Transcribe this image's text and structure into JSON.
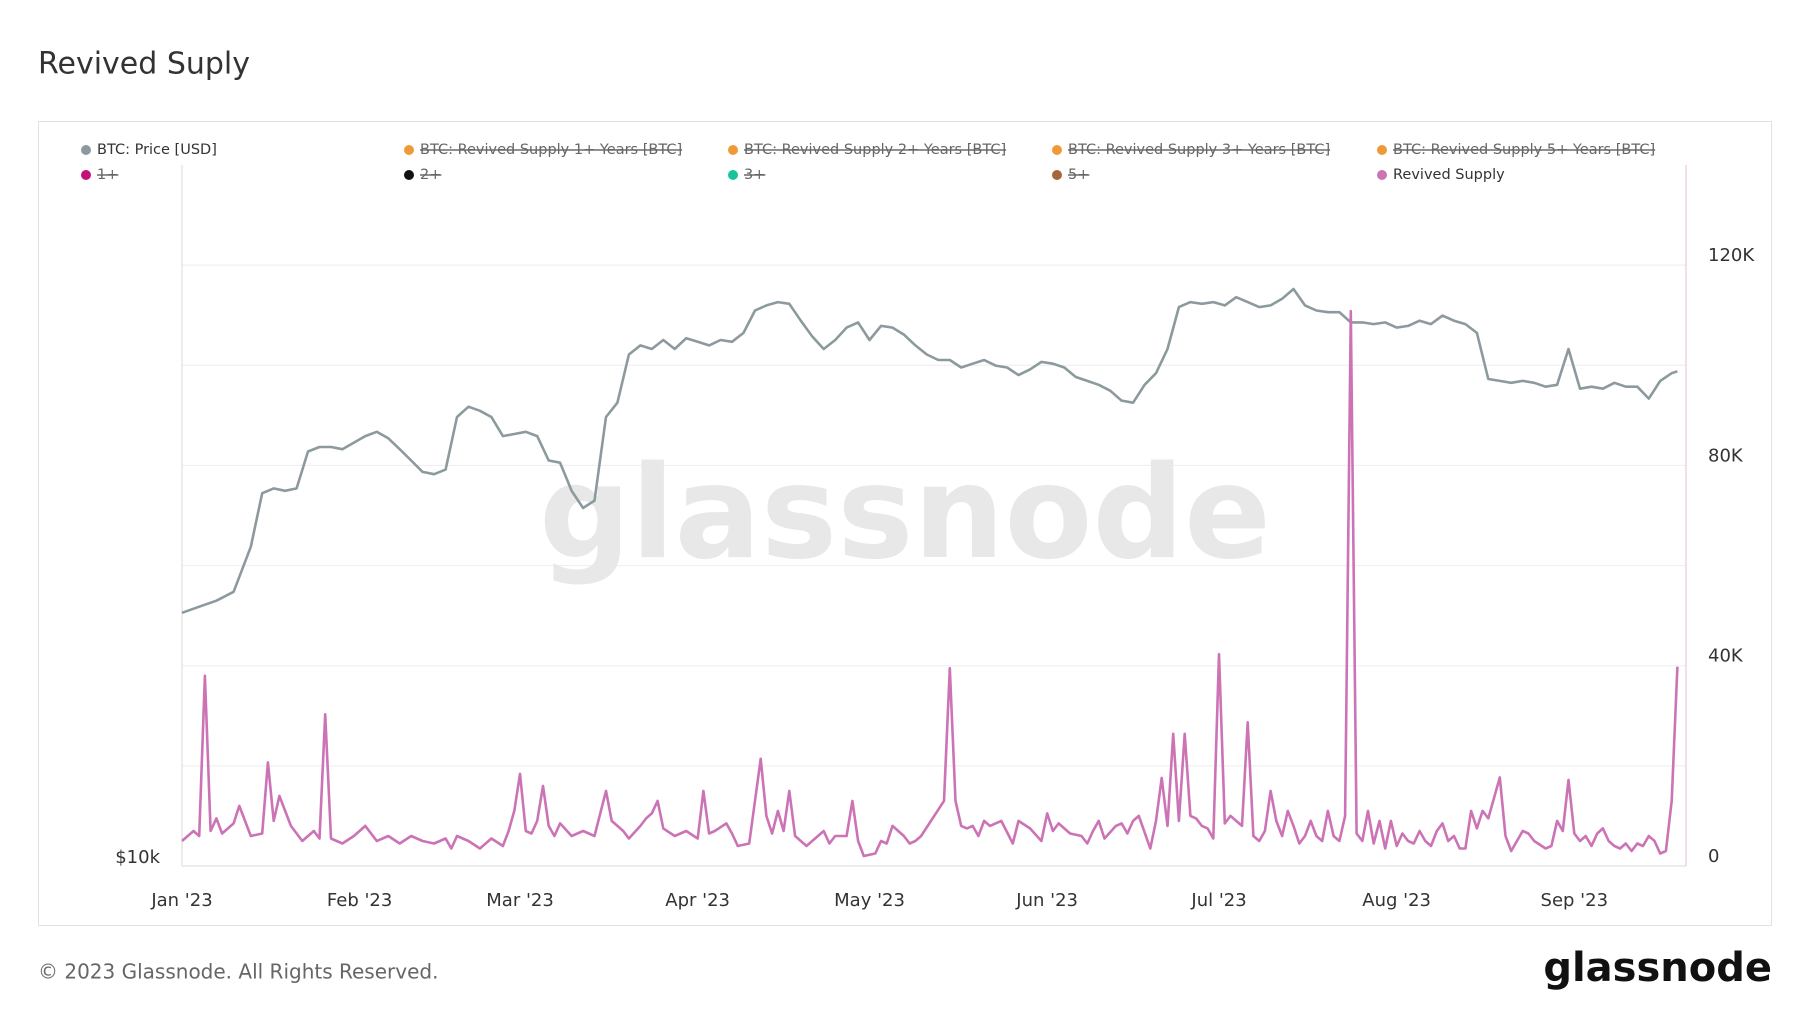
{
  "chart_data": {
    "type": "line",
    "title": "Revived Suply",
    "footer": "© 2023 Glassnode. All Rights Reserved.",
    "logo": "glassnode",
    "watermark": "glassnode",
    "xlim": [
      0,
      262.5
    ],
    "xticks": [
      {
        "value": 0,
        "label": "Jan '23"
      },
      {
        "value": 31,
        "label": "Feb '23"
      },
      {
        "value": 59,
        "label": "Mar '23"
      },
      {
        "value": 90,
        "label": "Apr '23"
      },
      {
        "value": 120,
        "label": "May '23"
      },
      {
        "value": 151,
        "label": "Jun '23"
      },
      {
        "value": 181,
        "label": "Jul '23"
      },
      {
        "value": 212,
        "label": "Aug '23"
      },
      {
        "value": 243,
        "label": "Sep '23"
      }
    ],
    "ylim": [
      10000,
      40000
    ],
    "ylog": true,
    "yticks": [
      {
        "value": 10000,
        "label": "$10k"
      }
    ],
    "y2lim": [
      0,
      140000
    ],
    "y2ticks": [
      0,
      {
        "value": 40000,
        "label": "40K"
      },
      {
        "value": 80000,
        "label": "80K"
      },
      {
        "value": 120000,
        "label": "120K"
      }
    ],
    "y2_minor_ticks": [
      20000,
      60000,
      100000
    ],
    "grid": true,
    "series": [
      {
        "name": "BTC: Price [USD]",
        "color": "#8c9a9e",
        "axis": "y",
        "x": [
          0,
          3,
          6,
          9,
          12,
          14,
          16,
          18,
          20,
          22,
          24,
          26,
          28,
          30,
          32,
          34,
          36,
          38,
          40,
          42,
          44,
          46,
          48,
          50,
          52,
          54,
          56,
          58,
          60,
          62,
          64,
          66,
          68,
          70,
          72,
          74,
          76,
          78,
          80,
          82,
          84,
          86,
          88,
          90,
          92,
          94,
          96,
          98,
          100,
          102,
          104,
          106,
          108,
          110,
          112,
          114,
          116,
          118,
          120,
          122,
          124,
          126,
          128,
          130,
          132,
          134,
          136,
          138,
          140,
          142,
          144,
          146,
          148,
          150,
          152,
          154,
          156,
          158,
          160,
          162,
          164,
          166,
          168,
          170,
          172,
          174,
          176,
          178,
          180,
          182,
          184,
          186,
          188,
          190,
          192,
          194,
          196,
          198,
          200,
          202,
          204,
          206,
          208,
          210,
          212,
          214,
          216,
          218,
          220,
          222,
          224,
          226,
          228,
          230,
          232,
          234,
          236,
          238,
          240,
          242,
          244,
          246,
          248,
          250,
          252,
          254,
          256,
          258,
          260,
          261
        ],
        "values": [
          16500,
          16700,
          16900,
          17200,
          18800,
          20900,
          21100,
          21000,
          21100,
          22700,
          22900,
          22900,
          22800,
          23100,
          23400,
          23600,
          23300,
          22800,
          22300,
          21800,
          21700,
          21900,
          24300,
          24800,
          24600,
          24300,
          23400,
          23500,
          23600,
          23400,
          22300,
          22200,
          21000,
          20300,
          20600,
          24300,
          25000,
          27500,
          28000,
          27800,
          28300,
          27800,
          28400,
          28200,
          28000,
          28300,
          28200,
          28700,
          30000,
          30300,
          30500,
          30400,
          29400,
          28500,
          27800,
          28300,
          29000,
          29300,
          28300,
          29100,
          29000,
          28600,
          28000,
          27500,
          27200,
          27200,
          26800,
          27000,
          27200,
          26900,
          26800,
          26400,
          26700,
          27100,
          27000,
          26800,
          26300,
          26100,
          25900,
          25600,
          25100,
          25000,
          25900,
          26500,
          27800,
          30200,
          30500,
          30400,
          30500,
          30300,
          30800,
          30500,
          30200,
          30300,
          30700,
          31300,
          30300,
          30000,
          29900,
          29900,
          29300,
          29300,
          29200,
          29300,
          29000,
          29100,
          29400,
          29200,
          29700,
          29400,
          29200,
          28700,
          26200,
          26100,
          26000,
          26100,
          26000,
          25800,
          25900,
          27800,
          25700,
          25800,
          25700,
          26000,
          25800,
          25800,
          25200,
          26100,
          26500,
          26600
        ]
      },
      {
        "name": "Revived Supply",
        "color": "#cc73b5",
        "axis": "y2",
        "x": [
          0,
          2,
          3,
          4,
          5,
          6,
          7,
          9,
          10,
          12,
          14,
          15,
          16,
          17,
          19,
          21,
          23,
          24,
          25,
          26,
          28,
          30,
          32,
          34,
          36,
          38,
          40,
          42,
          44,
          46,
          47,
          48,
          50,
          52,
          54,
          56,
          57,
          58,
          59,
          60,
          61,
          62,
          63,
          64,
          65,
          66,
          68,
          70,
          72,
          74,
          75,
          77,
          78,
          80,
          81,
          82,
          83,
          84,
          86,
          88,
          90,
          91,
          92,
          93,
          95,
          96,
          97,
          99,
          101,
          102,
          103,
          104,
          105,
          106,
          107,
          109,
          110,
          112,
          113,
          114,
          116,
          117,
          118,
          119,
          121,
          122,
          123,
          124,
          126,
          127,
          128,
          129,
          133,
          134,
          135,
          136,
          137,
          138,
          139,
          140,
          141,
          143,
          145,
          146,
          148,
          150,
          151,
          152,
          153,
          155,
          157,
          158,
          159,
          160,
          161,
          163,
          164,
          165,
          166,
          167,
          169,
          170,
          171,
          172,
          173,
          174,
          175,
          176,
          177,
          178,
          179,
          180,
          181,
          182,
          183,
          184,
          185,
          186,
          187,
          188,
          189,
          190,
          191,
          192,
          193,
          194,
          195,
          196,
          197,
          198,
          199,
          200,
          201,
          202,
          203,
          204,
          205,
          206,
          207,
          208,
          209,
          210,
          211,
          212,
          213,
          214,
          215,
          216,
          217,
          218,
          219,
          220,
          221,
          222,
          223,
          224,
          225,
          226,
          227,
          228,
          230,
          231,
          232,
          234,
          235,
          236,
          238,
          239,
          240,
          241,
          242,
          243,
          244,
          245,
          246,
          247,
          248,
          249,
          250,
          251,
          252,
          253,
          254,
          255,
          256,
          257,
          258,
          259,
          260,
          261
        ],
        "values": [
          5000,
          7000,
          6000,
          38000,
          7000,
          9500,
          6500,
          8500,
          12000,
          6000,
          6500,
          20700,
          9000,
          14000,
          8000,
          5000,
          7000,
          5500,
          30300,
          5500,
          4500,
          6000,
          8000,
          5000,
          6000,
          4500,
          6000,
          5000,
          4500,
          5500,
          3500,
          6000,
          5000,
          3500,
          5500,
          4000,
          7000,
          11000,
          18400,
          7000,
          6500,
          9000,
          16000,
          8000,
          6000,
          8500,
          6000,
          7000,
          6000,
          15000,
          9000,
          7000,
          5500,
          8000,
          9500,
          10500,
          13000,
          7500,
          6000,
          7000,
          5500,
          15000,
          6500,
          7000,
          8500,
          6500,
          4000,
          4500,
          21400,
          10000,
          6500,
          11000,
          7000,
          15000,
          6000,
          4000,
          5000,
          7000,
          4500,
          6000,
          6000,
          13000,
          5000,
          2000,
          2500,
          5000,
          4500,
          8000,
          6000,
          4500,
          5000,
          6000,
          13000,
          39500,
          13000,
          8000,
          7500,
          8000,
          6000,
          9000,
          8000,
          9000,
          4500,
          9000,
          7500,
          5000,
          10500,
          7000,
          8500,
          6500,
          6000,
          4500,
          7000,
          9000,
          5500,
          8000,
          8500,
          6500,
          9000,
          10000,
          3500,
          9000,
          17600,
          8000,
          26400,
          9000,
          26400,
          10000,
          9500,
          8000,
          7500,
          5500,
          42300,
          8500,
          10000,
          9000,
          8000,
          28700,
          6000,
          5000,
          7000,
          15000,
          9000,
          6000,
          11000,
          8000,
          4500,
          6000,
          9000,
          6000,
          5000,
          11000,
          6000,
          5000,
          10000,
          110800,
          6500,
          5000,
          11000,
          4500,
          9000,
          3500,
          9000,
          4000,
          6500,
          5000,
          4500,
          7000,
          5000,
          4000,
          7000,
          8500,
          5000,
          6000,
          3500,
          3500,
          11000,
          7500,
          11000,
          9500,
          17700,
          6000,
          3000,
          7000,
          6500,
          5000,
          3500,
          4000,
          9000,
          7000,
          17200,
          6500,
          5000,
          6000,
          4000,
          6500,
          7500,
          5000,
          4000,
          3500,
          4500,
          3000,
          4500,
          4000,
          6000,
          5000,
          2500,
          3000,
          13000,
          39800
        ]
      }
    ],
    "hidden_series": [
      {
        "name": "BTC: Revived Supply 1+ Years [BTC]",
        "color": "#f09a37"
      },
      {
        "name": "BTC: Revived Supply 2+ Years [BTC]",
        "color": "#f09a37"
      },
      {
        "name": "BTC: Revived Supply 3+ Years [BTC]",
        "color": "#f09a37"
      },
      {
        "name": "BTC: Revived Supply 5+ Years [BTC]",
        "color": "#f09a37"
      },
      {
        "name": "1+",
        "color": "#c2117a"
      },
      {
        "name": "2+",
        "color": "#111111"
      },
      {
        "name": "3+",
        "color": "#17c39b"
      },
      {
        "name": "5+",
        "color": "#a8643c"
      }
    ]
  }
}
